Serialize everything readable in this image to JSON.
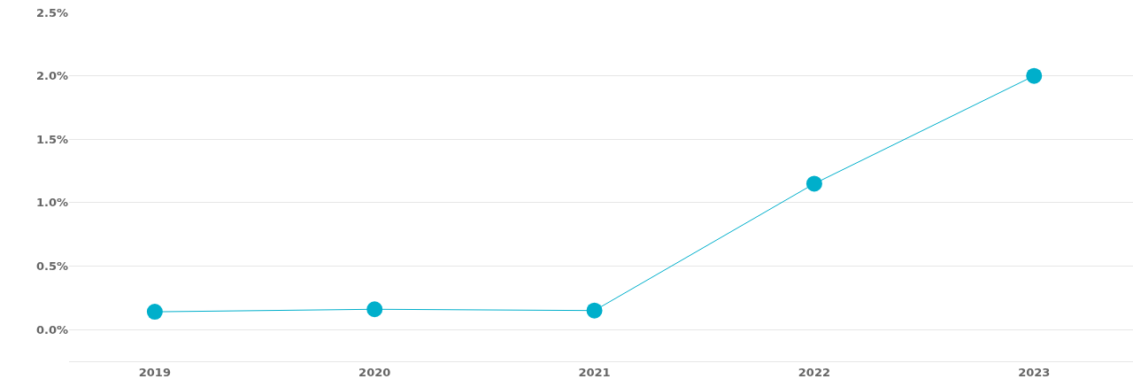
{
  "chart_data": {
    "type": "line",
    "categories": [
      "2019",
      "2020",
      "2021",
      "2022",
      "2023"
    ],
    "series": [
      {
        "color": "#00afcb",
        "values": [
          0.14,
          0.16,
          0.15,
          1.15,
          2.0
        ]
      }
    ],
    "ylim": [
      -0.25,
      2.5
    ],
    "yticks": [
      {
        "value": 0,
        "label": "0.0%"
      },
      {
        "value": 0.5,
        "label": "0.5%"
      },
      {
        "value": 1,
        "label": "1.0%"
      },
      {
        "value": 1.5,
        "label": "1.5%"
      },
      {
        "value": 2,
        "label": "2.0%"
      },
      {
        "value": 2.5,
        "label": "2.5%"
      }
    ],
    "grid": "y",
    "marker": "circle",
    "line_style": "solid",
    "legend": false
  }
}
